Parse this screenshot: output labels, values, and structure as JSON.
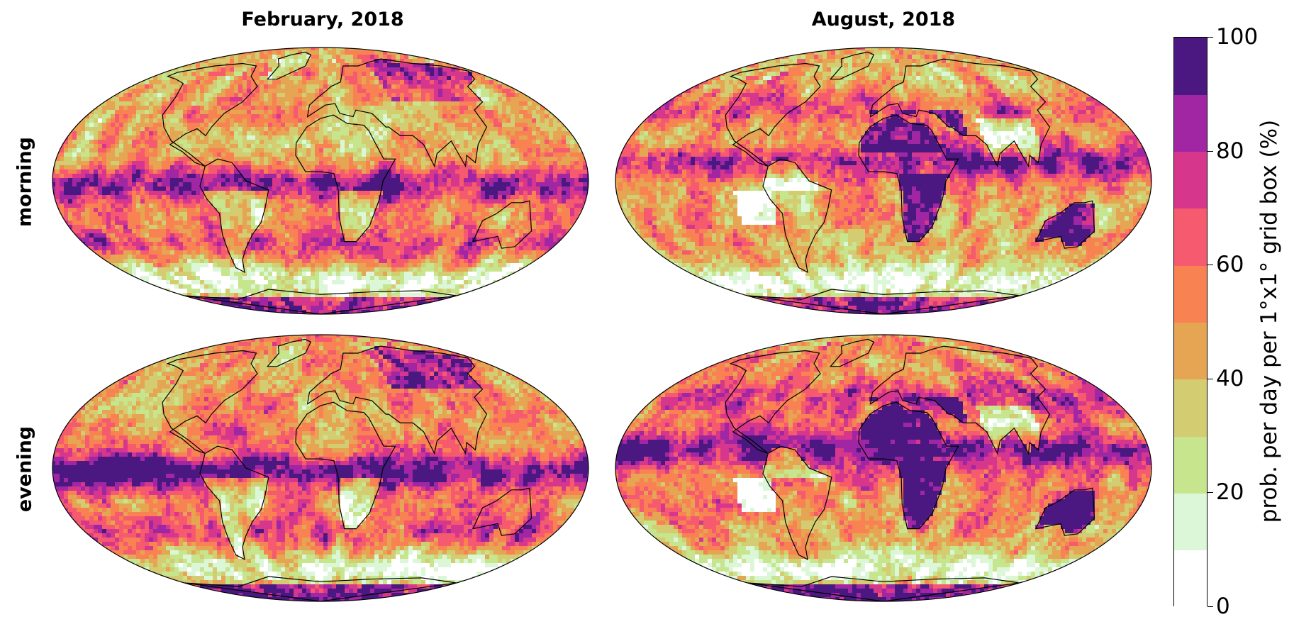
{
  "columns": [
    {
      "title": "February, 2018"
    },
    {
      "title": "August, 2018"
    }
  ],
  "rows": [
    {
      "label": "morning"
    },
    {
      "label": "evening"
    }
  ],
  "colorbar": {
    "title": "prob. per day per 1°x1° grid box (%)",
    "range": [
      0,
      100
    ],
    "tick_labels": [
      "0",
      "20",
      "40",
      "60",
      "80",
      "100"
    ],
    "tick_values": [
      0,
      20,
      40,
      60,
      80,
      100
    ],
    "bins": [
      0,
      10,
      20,
      30,
      40,
      50,
      60,
      70,
      80,
      90,
      100
    ],
    "colors": [
      "#ffffff",
      "#dcf7d8",
      "#c6e58c",
      "#d4cc70",
      "#e5a552",
      "#f98253",
      "#f55a6e",
      "#d6378c",
      "#a026a4",
      "#4a1880"
    ]
  },
  "map": {
    "projection": "Mollweide",
    "coastlines": true
  }
}
